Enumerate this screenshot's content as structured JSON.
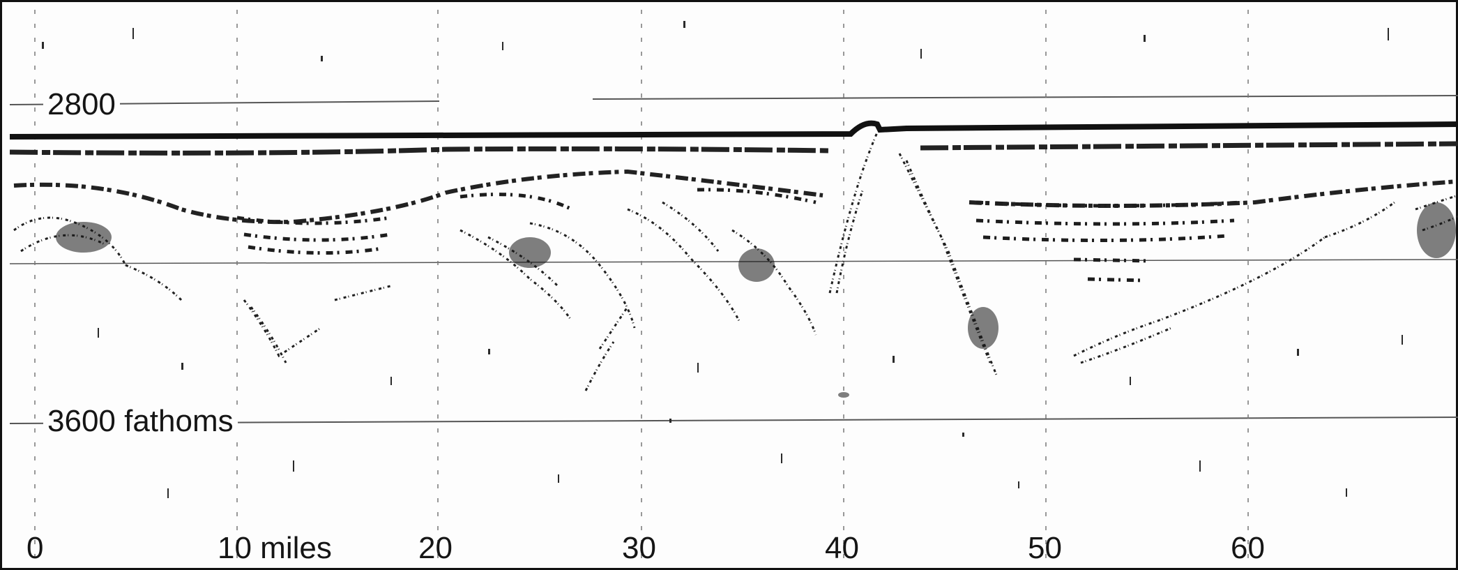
{
  "depth_scale": {
    "top_label": "2800",
    "bottom_label": "3600 fathoms"
  },
  "distance_scale": {
    "labels": [
      "0",
      "10 miles",
      "20",
      "30",
      "40",
      "50",
      "60"
    ]
  },
  "colors": {
    "ink": "#151515",
    "paper": "#fdfdfd"
  }
}
